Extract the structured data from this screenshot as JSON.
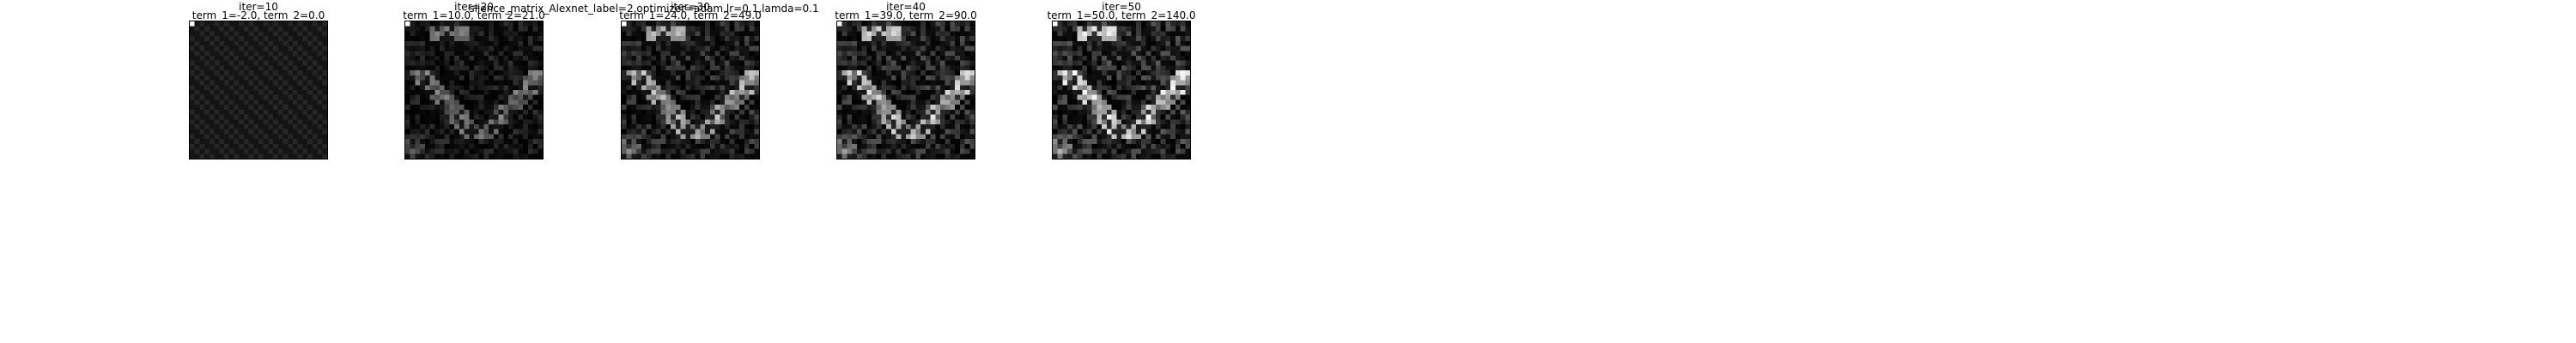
{
  "figure": {
    "suptitle": "slience_matrix_Alexnet_label=2,optimizer=adam,lr=0.1,lamda=0.1"
  },
  "chart_data": [
    {
      "type": "heatmap",
      "title_line1": "iter=10",
      "title_line2": "term_1=-2.0, term_2=0.0",
      "iter": 10,
      "term_1": -2.0,
      "term_2": 0.0,
      "grid": [
        28,
        28
      ],
      "colormap": "gray",
      "intensity": 0.12
    },
    {
      "type": "heatmap",
      "title_line1": "iter=20",
      "title_line2": "term_1=10.0, term_2=21.0",
      "iter": 20,
      "term_1": 10.0,
      "term_2": 21.0,
      "grid": [
        28,
        28
      ],
      "colormap": "gray",
      "intensity": 0.55
    },
    {
      "type": "heatmap",
      "title_line1": "iter=30",
      "title_line2": "term_1=24.0, term_2=49.0",
      "iter": 30,
      "term_1": 24.0,
      "term_2": 49.0,
      "grid": [
        28,
        28
      ],
      "colormap": "gray",
      "intensity": 0.8
    },
    {
      "type": "heatmap",
      "title_line1": "iter=40",
      "title_line2": "term_1=39.0, term_2=90.0",
      "iter": 40,
      "term_1": 39.0,
      "term_2": 90.0,
      "grid": [
        28,
        28
      ],
      "colormap": "gray",
      "intensity": 0.9
    },
    {
      "type": "heatmap",
      "title_line1": "iter=50",
      "title_line2": "term_1=50.0, term_2=140.0",
      "iter": 50,
      "term_1": 50.0,
      "term_2": 140.0,
      "grid": [
        28,
        28
      ],
      "colormap": "gray",
      "intensity": 1.0
    }
  ]
}
